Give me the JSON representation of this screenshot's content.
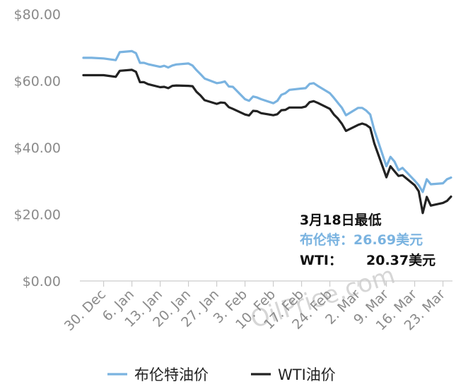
{
  "chart_data": {
    "type": "line",
    "ylim": [
      0,
      80
    ],
    "y_ticks": [
      {
        "value": 80,
        "label": "$80.00"
      },
      {
        "value": 60,
        "label": "$60.00"
      },
      {
        "value": 40,
        "label": "$40.00"
      },
      {
        "value": 20,
        "label": "$20.00"
      },
      {
        "value": 0,
        "label": "$0.00"
      }
    ],
    "x_ticks": [
      {
        "date": "2019-12-30",
        "label": "30. Dec"
      },
      {
        "date": "2020-01-06",
        "label": "6. Jan"
      },
      {
        "date": "2020-01-13",
        "label": "13. Jan"
      },
      {
        "date": "2020-01-20",
        "label": "20. Jan"
      },
      {
        "date": "2020-01-27",
        "label": "27. Jan"
      },
      {
        "date": "2020-02-03",
        "label": "3. Feb"
      },
      {
        "date": "2020-02-10",
        "label": "10. Feb"
      },
      {
        "date": "2020-02-17",
        "label": "17. Feb"
      },
      {
        "date": "2020-02-24",
        "label": "24. Feb"
      },
      {
        "date": "2020-03-02",
        "label": "2. Mar"
      },
      {
        "date": "2020-03-09",
        "label": "9. Mar"
      },
      {
        "date": "2020-03-16",
        "label": "16. Mar"
      },
      {
        "date": "2020-03-23",
        "label": "23. Mar"
      }
    ],
    "x_range": [
      "2019-12-25",
      "2020-03-25"
    ],
    "grid": false,
    "legend_position": "bottom",
    "series": [
      {
        "name": "布伦特油价",
        "color": "#7ab3e0",
        "points": [
          [
            "2019-12-25",
            66.9
          ],
          [
            "2019-12-27",
            66.9
          ],
          [
            "2019-12-30",
            66.7
          ],
          [
            "2020-01-02",
            66.2
          ],
          [
            "2020-01-03",
            68.6
          ],
          [
            "2020-01-06",
            68.9
          ],
          [
            "2020-01-07",
            68.3
          ],
          [
            "2020-01-08",
            65.4
          ],
          [
            "2020-01-09",
            65.4
          ],
          [
            "2020-01-10",
            65.0
          ],
          [
            "2020-01-13",
            64.2
          ],
          [
            "2020-01-14",
            64.5
          ],
          [
            "2020-01-15",
            64.0
          ],
          [
            "2020-01-16",
            64.6
          ],
          [
            "2020-01-17",
            64.9
          ],
          [
            "2020-01-20",
            65.2
          ],
          [
            "2020-01-21",
            64.6
          ],
          [
            "2020-01-22",
            63.2
          ],
          [
            "2020-01-23",
            62.0
          ],
          [
            "2020-01-24",
            60.7
          ],
          [
            "2020-01-27",
            59.3
          ],
          [
            "2020-01-28",
            59.5
          ],
          [
            "2020-01-29",
            59.8
          ],
          [
            "2020-01-30",
            58.3
          ],
          [
            "2020-01-31",
            58.2
          ],
          [
            "2020-02-03",
            54.5
          ],
          [
            "2020-02-04",
            54.0
          ],
          [
            "2020-02-05",
            55.3
          ],
          [
            "2020-02-06",
            55.0
          ],
          [
            "2020-02-07",
            54.5
          ],
          [
            "2020-02-10",
            53.3
          ],
          [
            "2020-02-11",
            54.0
          ],
          [
            "2020-02-12",
            55.8
          ],
          [
            "2020-02-13",
            56.3
          ],
          [
            "2020-02-14",
            57.3
          ],
          [
            "2020-02-17",
            57.7
          ],
          [
            "2020-02-18",
            57.8
          ],
          [
            "2020-02-19",
            59.1
          ],
          [
            "2020-02-20",
            59.3
          ],
          [
            "2020-02-21",
            58.5
          ],
          [
            "2020-02-24",
            56.3
          ],
          [
            "2020-02-25",
            54.9
          ],
          [
            "2020-02-26",
            53.4
          ],
          [
            "2020-02-27",
            51.9
          ],
          [
            "2020-02-28",
            49.7
          ],
          [
            "2020-03-02",
            51.9
          ],
          [
            "2020-03-03",
            51.9
          ],
          [
            "2020-03-04",
            51.1
          ],
          [
            "2020-03-05",
            49.9
          ],
          [
            "2020-03-06",
            45.3
          ],
          [
            "2020-03-09",
            34.4
          ],
          [
            "2020-03-10",
            37.2
          ],
          [
            "2020-03-11",
            35.8
          ],
          [
            "2020-03-12",
            33.2
          ],
          [
            "2020-03-13",
            33.9
          ],
          [
            "2020-03-16",
            30.1
          ],
          [
            "2020-03-17",
            28.7
          ],
          [
            "2020-03-18",
            26.69
          ],
          [
            "2020-03-19",
            30.5
          ],
          [
            "2020-03-20",
            29.0
          ],
          [
            "2020-03-23",
            29.3
          ],
          [
            "2020-03-24",
            30.5
          ],
          [
            "2020-03-25",
            31.0
          ]
        ]
      },
      {
        "name": "WTI油价",
        "color": "#222222",
        "points": [
          [
            "2019-12-25",
            61.7
          ],
          [
            "2019-12-27",
            61.7
          ],
          [
            "2019-12-30",
            61.7
          ],
          [
            "2020-01-02",
            61.2
          ],
          [
            "2020-01-03",
            63.0
          ],
          [
            "2020-01-06",
            63.3
          ],
          [
            "2020-01-07",
            62.7
          ],
          [
            "2020-01-08",
            59.6
          ],
          [
            "2020-01-09",
            59.6
          ],
          [
            "2020-01-10",
            59.0
          ],
          [
            "2020-01-13",
            58.1
          ],
          [
            "2020-01-14",
            58.2
          ],
          [
            "2020-01-15",
            57.8
          ],
          [
            "2020-01-16",
            58.5
          ],
          [
            "2020-01-17",
            58.6
          ],
          [
            "2020-01-20",
            58.5
          ],
          [
            "2020-01-21",
            58.4
          ],
          [
            "2020-01-22",
            56.7
          ],
          [
            "2020-01-23",
            55.6
          ],
          [
            "2020-01-24",
            54.2
          ],
          [
            "2020-01-27",
            53.1
          ],
          [
            "2020-01-28",
            53.5
          ],
          [
            "2020-01-29",
            53.4
          ],
          [
            "2020-01-30",
            52.1
          ],
          [
            "2020-01-31",
            51.6
          ],
          [
            "2020-02-03",
            49.9
          ],
          [
            "2020-02-04",
            49.6
          ],
          [
            "2020-02-05",
            51.0
          ],
          [
            "2020-02-06",
            50.9
          ],
          [
            "2020-02-07",
            50.3
          ],
          [
            "2020-02-10",
            49.7
          ],
          [
            "2020-02-11",
            50.0
          ],
          [
            "2020-02-12",
            51.2
          ],
          [
            "2020-02-13",
            51.3
          ],
          [
            "2020-02-14",
            52.0
          ],
          [
            "2020-02-17",
            52.0
          ],
          [
            "2020-02-18",
            52.3
          ],
          [
            "2020-02-19",
            53.6
          ],
          [
            "2020-02-20",
            53.9
          ],
          [
            "2020-02-21",
            53.4
          ],
          [
            "2020-02-24",
            51.6
          ],
          [
            "2020-02-25",
            49.9
          ],
          [
            "2020-02-26",
            48.7
          ],
          [
            "2020-02-27",
            47.1
          ],
          [
            "2020-02-28",
            45.0
          ],
          [
            "2020-03-02",
            46.8
          ],
          [
            "2020-03-03",
            47.2
          ],
          [
            "2020-03-04",
            46.8
          ],
          [
            "2020-03-05",
            45.9
          ],
          [
            "2020-03-06",
            41.3
          ],
          [
            "2020-03-09",
            31.1
          ],
          [
            "2020-03-10",
            34.4
          ],
          [
            "2020-03-11",
            32.9
          ],
          [
            "2020-03-12",
            31.5
          ],
          [
            "2020-03-13",
            31.7
          ],
          [
            "2020-03-16",
            28.7
          ],
          [
            "2020-03-17",
            26.9
          ],
          [
            "2020-03-18",
            20.37
          ],
          [
            "2020-03-19",
            25.2
          ],
          [
            "2020-03-20",
            22.6
          ],
          [
            "2020-03-23",
            23.4
          ],
          [
            "2020-03-24",
            24.0
          ],
          [
            "2020-03-25",
            25.3
          ]
        ]
      }
    ],
    "annotation": {
      "title": "3月18日最低",
      "brent_line": "布伦特：26.69美元",
      "wti_label": "WTI：",
      "wti_value": "20.37美元",
      "brent_color": "#7ab3e0",
      "text_color": "#111111"
    }
  },
  "legend": [
    {
      "label": "布伦特油价",
      "color": "#7ab3e0"
    },
    {
      "label": "WTI油价",
      "color": "#222222"
    }
  ],
  "watermark": "OilPrice.com"
}
